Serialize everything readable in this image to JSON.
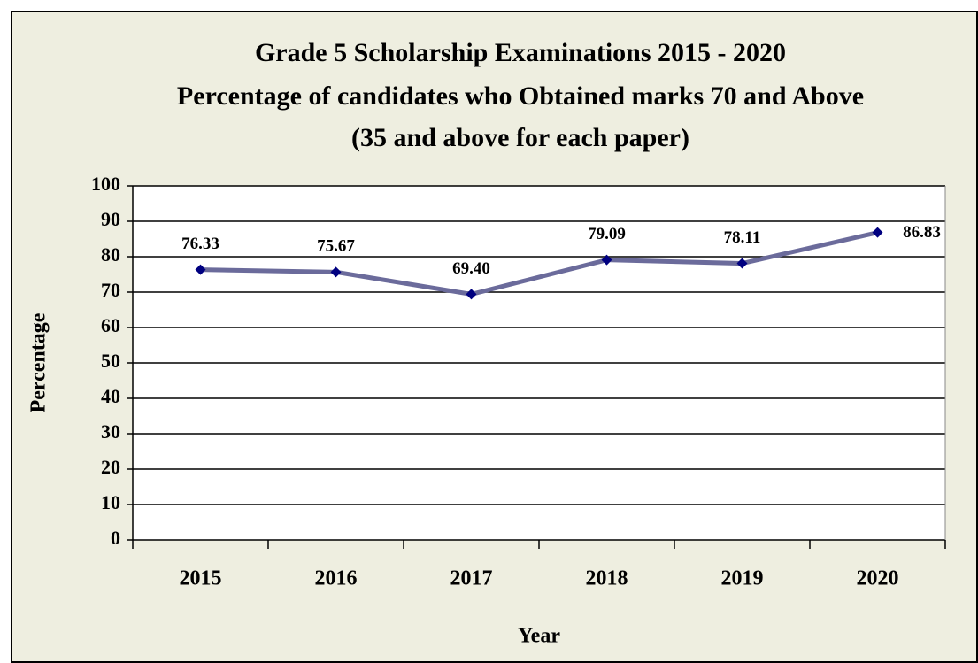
{
  "chart_data": {
    "type": "line",
    "title": [
      "Grade 5 Scholarship Examinations  2015 - 2020",
      "Percentage of  candidates who Obtained marks 70 and Above",
      "(35 and above for each paper)"
    ],
    "x_label": "Year",
    "y_label": "Percentage",
    "categories": [
      "2015",
      "2016",
      "2017",
      "2018",
      "2019",
      "2020"
    ],
    "series": [
      {
        "name": "Percentage",
        "color": "#6b6b9b",
        "marker_color": "#000080",
        "values": [
          76.33,
          75.67,
          69.4,
          79.09,
          78.11,
          86.83
        ],
        "value_labels": [
          "76.33",
          "75.67",
          "69.40",
          "79.09",
          "78.11",
          "86.83"
        ]
      }
    ],
    "ylim": [
      0,
      100
    ],
    "yticks": [
      0,
      10,
      20,
      30,
      40,
      50,
      60,
      70,
      80,
      90,
      100
    ],
    "grid": true
  }
}
